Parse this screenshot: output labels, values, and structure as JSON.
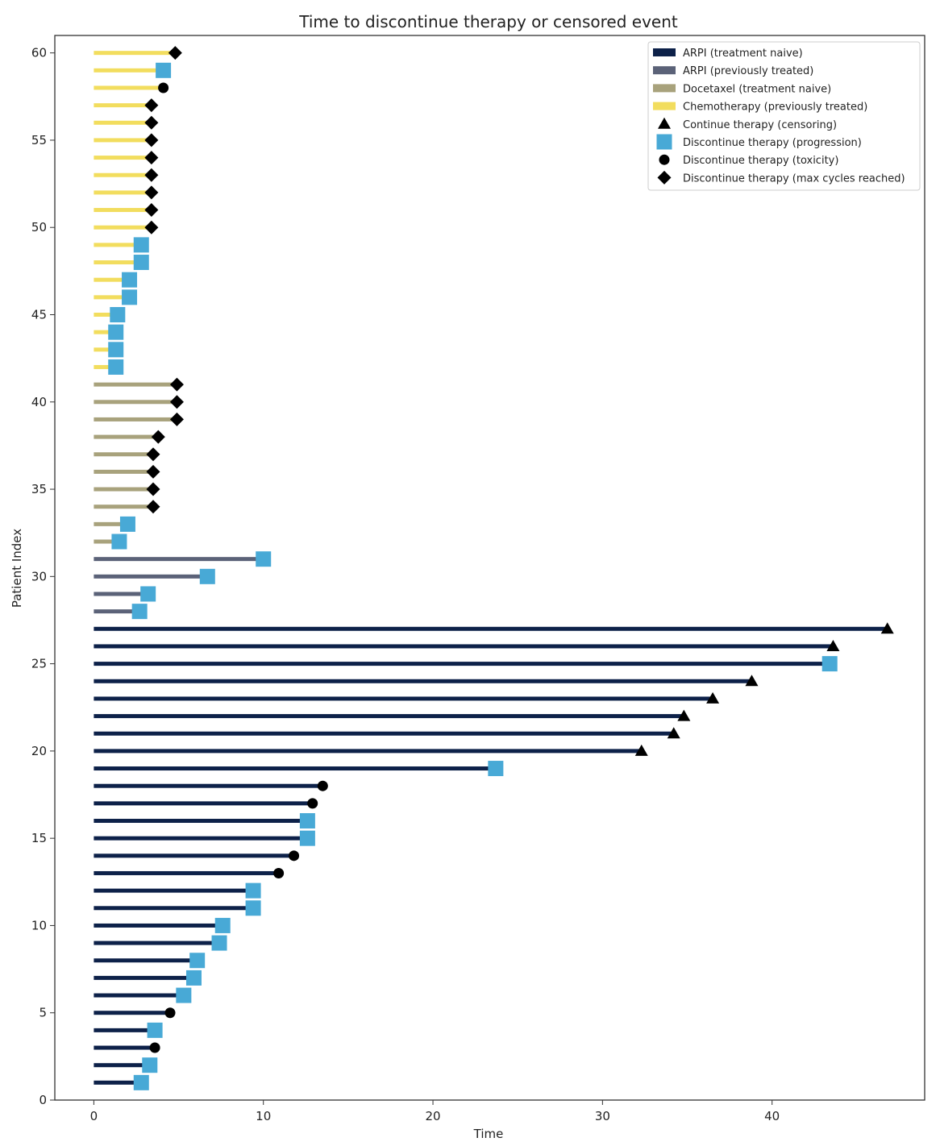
{
  "chart_data": {
    "type": "swimmer",
    "title": "Time to discontinue therapy or censored event",
    "xlabel": "Time",
    "ylabel": "Patient Index",
    "xlim": [
      -2.3,
      49
    ],
    "ylim": [
      0,
      61
    ],
    "xticks": [
      0,
      10,
      20,
      30,
      40
    ],
    "yticks": [
      0,
      5,
      10,
      15,
      20,
      25,
      30,
      35,
      40,
      45,
      50,
      55,
      60
    ],
    "grid": false,
    "legend_position": "top-right",
    "groups": [
      {
        "key": "arpi_naive",
        "name": "ARPI (treatment naive)",
        "color": "#0d2149"
      },
      {
        "key": "arpi_prev",
        "name": "ARPI (previously treated)",
        "color": "#5b6278"
      },
      {
        "key": "doce_naive",
        "name": "Docetaxel (treatment naive)",
        "color": "#a8a27c"
      },
      {
        "key": "chemo_prev",
        "name": "Chemotherapy (previously treated)",
        "color": "#f2dd5e"
      }
    ],
    "events": [
      {
        "key": "censoring",
        "name": "Continue therapy (censoring)",
        "marker": "triangle",
        "color": "#000000"
      },
      {
        "key": "progression",
        "name": "Discontinue therapy (progression)",
        "marker": "square",
        "color": "#48a9d6"
      },
      {
        "key": "toxicity",
        "name": "Discontinue therapy (toxicity)",
        "marker": "circle",
        "color": "#000000"
      },
      {
        "key": "maxcycles",
        "name": "Discontinue therapy (max cycles reached)",
        "marker": "diamond",
        "color": "#000000"
      }
    ],
    "patients": [
      {
        "index": 1,
        "group": "arpi_naive",
        "time": 2.8,
        "event": "progression"
      },
      {
        "index": 2,
        "group": "arpi_naive",
        "time": 3.3,
        "event": "progression"
      },
      {
        "index": 3,
        "group": "arpi_naive",
        "time": 3.6,
        "event": "toxicity"
      },
      {
        "index": 4,
        "group": "arpi_naive",
        "time": 3.6,
        "event": "progression"
      },
      {
        "index": 5,
        "group": "arpi_naive",
        "time": 4.5,
        "event": "toxicity"
      },
      {
        "index": 6,
        "group": "arpi_naive",
        "time": 5.3,
        "event": "progression"
      },
      {
        "index": 7,
        "group": "arpi_naive",
        "time": 5.9,
        "event": "progression"
      },
      {
        "index": 8,
        "group": "arpi_naive",
        "time": 6.1,
        "event": "progression"
      },
      {
        "index": 9,
        "group": "arpi_naive",
        "time": 7.4,
        "event": "progression"
      },
      {
        "index": 10,
        "group": "arpi_naive",
        "time": 7.6,
        "event": "progression"
      },
      {
        "index": 11,
        "group": "arpi_naive",
        "time": 9.4,
        "event": "progression"
      },
      {
        "index": 12,
        "group": "arpi_naive",
        "time": 9.4,
        "event": "progression"
      },
      {
        "index": 13,
        "group": "arpi_naive",
        "time": 10.9,
        "event": "toxicity"
      },
      {
        "index": 14,
        "group": "arpi_naive",
        "time": 11.8,
        "event": "toxicity"
      },
      {
        "index": 15,
        "group": "arpi_naive",
        "time": 12.6,
        "event": "progression"
      },
      {
        "index": 16,
        "group": "arpi_naive",
        "time": 12.6,
        "event": "progression"
      },
      {
        "index": 17,
        "group": "arpi_naive",
        "time": 12.9,
        "event": "toxicity"
      },
      {
        "index": 18,
        "group": "arpi_naive",
        "time": 13.5,
        "event": "toxicity"
      },
      {
        "index": 19,
        "group": "arpi_naive",
        "time": 23.7,
        "event": "progression"
      },
      {
        "index": 20,
        "group": "arpi_naive",
        "time": 32.3,
        "event": "censoring"
      },
      {
        "index": 21,
        "group": "arpi_naive",
        "time": 34.2,
        "event": "censoring"
      },
      {
        "index": 22,
        "group": "arpi_naive",
        "time": 34.8,
        "event": "censoring"
      },
      {
        "index": 23,
        "group": "arpi_naive",
        "time": 36.5,
        "event": "censoring"
      },
      {
        "index": 24,
        "group": "arpi_naive",
        "time": 38.8,
        "event": "censoring"
      },
      {
        "index": 25,
        "group": "arpi_naive",
        "time": 43.4,
        "event": "progression"
      },
      {
        "index": 26,
        "group": "arpi_naive",
        "time": 43.6,
        "event": "censoring"
      },
      {
        "index": 27,
        "group": "arpi_naive",
        "time": 46.8,
        "event": "censoring"
      },
      {
        "index": 28,
        "group": "arpi_prev",
        "time": 2.7,
        "event": "progression"
      },
      {
        "index": 29,
        "group": "arpi_prev",
        "time": 3.2,
        "event": "progression"
      },
      {
        "index": 30,
        "group": "arpi_prev",
        "time": 6.7,
        "event": "progression"
      },
      {
        "index": 31,
        "group": "arpi_prev",
        "time": 10.0,
        "event": "progression"
      },
      {
        "index": 32,
        "group": "doce_naive",
        "time": 1.5,
        "event": "progression"
      },
      {
        "index": 33,
        "group": "doce_naive",
        "time": 2.0,
        "event": "progression"
      },
      {
        "index": 34,
        "group": "doce_naive",
        "time": 3.5,
        "event": "maxcycles"
      },
      {
        "index": 35,
        "group": "doce_naive",
        "time": 3.5,
        "event": "maxcycles"
      },
      {
        "index": 36,
        "group": "doce_naive",
        "time": 3.5,
        "event": "maxcycles"
      },
      {
        "index": 37,
        "group": "doce_naive",
        "time": 3.5,
        "event": "maxcycles"
      },
      {
        "index": 38,
        "group": "doce_naive",
        "time": 3.8,
        "event": "maxcycles"
      },
      {
        "index": 39,
        "group": "doce_naive",
        "time": 4.9,
        "event": "maxcycles"
      },
      {
        "index": 40,
        "group": "doce_naive",
        "time": 4.9,
        "event": "maxcycles"
      },
      {
        "index": 41,
        "group": "doce_naive",
        "time": 4.9,
        "event": "maxcycles"
      },
      {
        "index": 42,
        "group": "chemo_prev",
        "time": 1.3,
        "event": "progression"
      },
      {
        "index": 43,
        "group": "chemo_prev",
        "time": 1.3,
        "event": "progression"
      },
      {
        "index": 44,
        "group": "chemo_prev",
        "time": 1.3,
        "event": "progression"
      },
      {
        "index": 45,
        "group": "chemo_prev",
        "time": 1.4,
        "event": "progression"
      },
      {
        "index": 46,
        "group": "chemo_prev",
        "time": 2.1,
        "event": "progression"
      },
      {
        "index": 47,
        "group": "chemo_prev",
        "time": 2.1,
        "event": "progression"
      },
      {
        "index": 48,
        "group": "chemo_prev",
        "time": 2.8,
        "event": "progression"
      },
      {
        "index": 49,
        "group": "chemo_prev",
        "time": 2.8,
        "event": "progression"
      },
      {
        "index": 50,
        "group": "chemo_prev",
        "time": 3.4,
        "event": "maxcycles"
      },
      {
        "index": 51,
        "group": "chemo_prev",
        "time": 3.4,
        "event": "maxcycles"
      },
      {
        "index": 52,
        "group": "chemo_prev",
        "time": 3.4,
        "event": "maxcycles"
      },
      {
        "index": 53,
        "group": "chemo_prev",
        "time": 3.4,
        "event": "maxcycles"
      },
      {
        "index": 54,
        "group": "chemo_prev",
        "time": 3.4,
        "event": "maxcycles"
      },
      {
        "index": 55,
        "group": "chemo_prev",
        "time": 3.4,
        "event": "maxcycles"
      },
      {
        "index": 56,
        "group": "chemo_prev",
        "time": 3.4,
        "event": "maxcycles"
      },
      {
        "index": 57,
        "group": "chemo_prev",
        "time": 3.4,
        "event": "maxcycles"
      },
      {
        "index": 58,
        "group": "chemo_prev",
        "time": 4.1,
        "event": "toxicity"
      },
      {
        "index": 59,
        "group": "chemo_prev",
        "time": 4.1,
        "event": "progression"
      },
      {
        "index": 60,
        "group": "chemo_prev",
        "time": 4.8,
        "event": "maxcycles"
      }
    ]
  }
}
